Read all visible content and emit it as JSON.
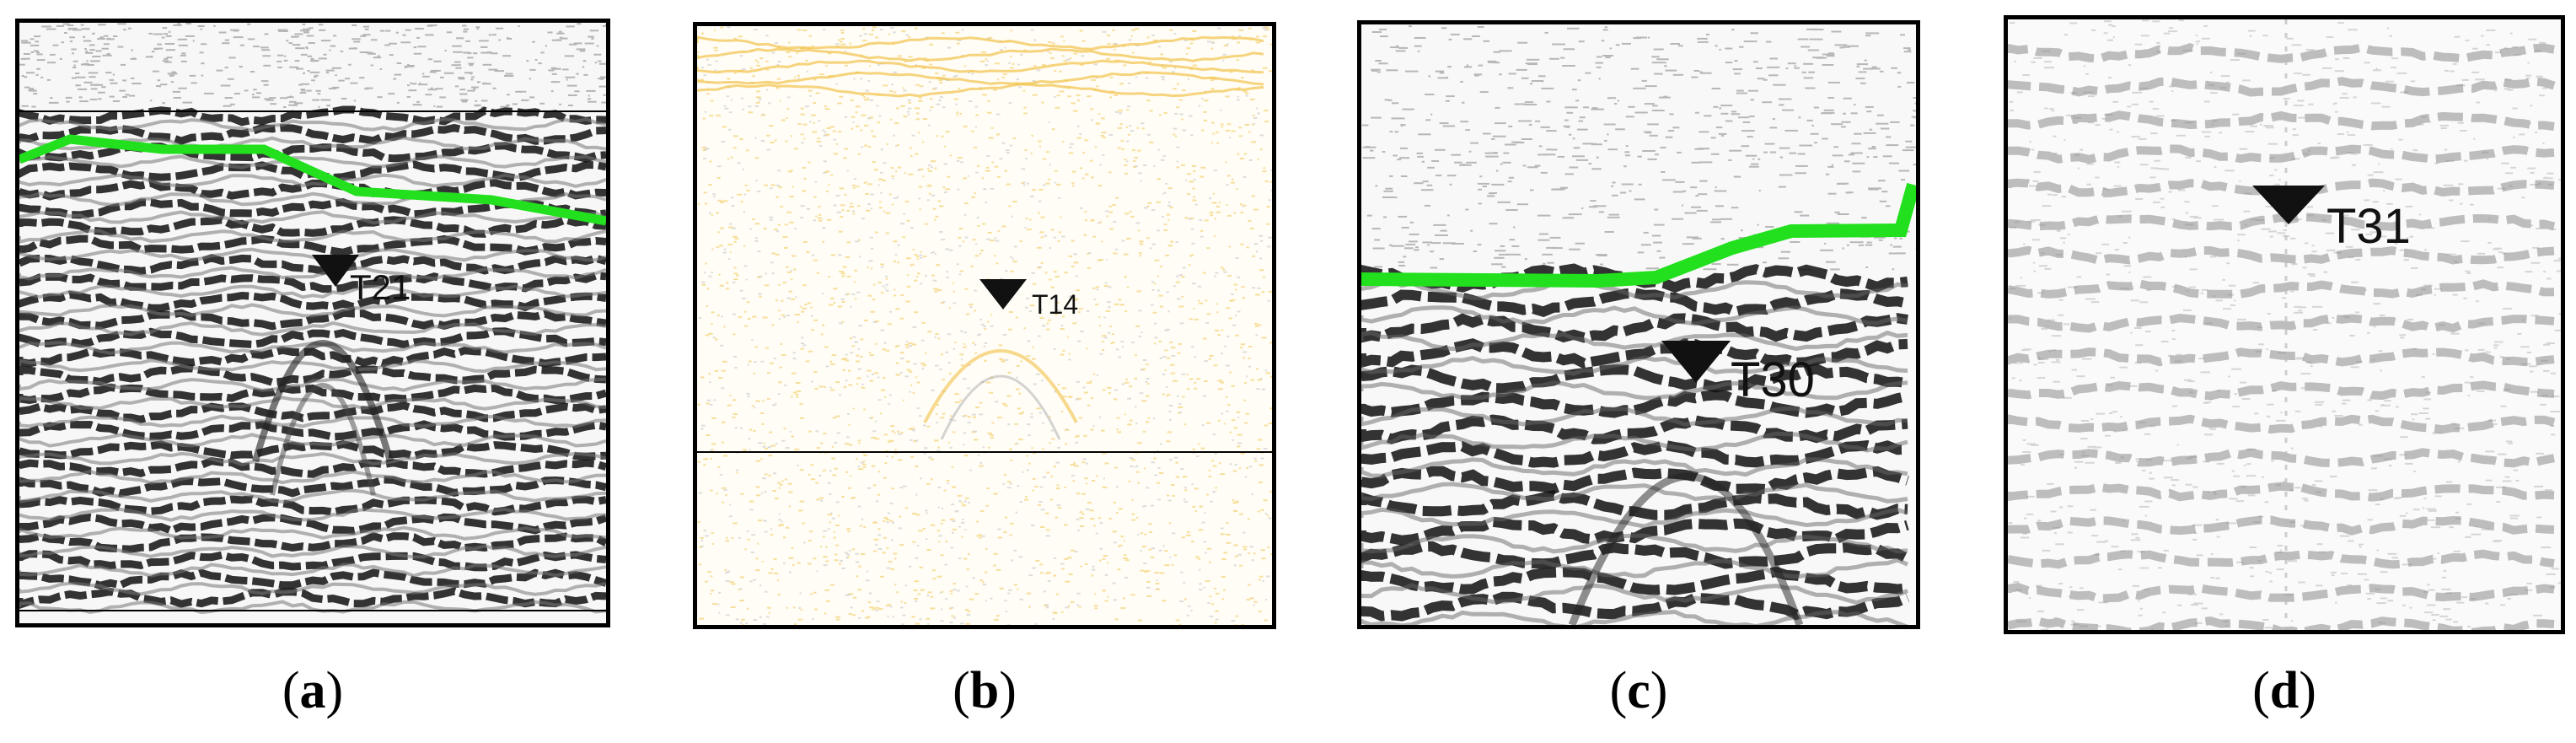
{
  "panels": [
    {
      "caption_open": "(",
      "caption_letter": "a",
      "caption_close": ")",
      "marker_label": "T21"
    },
    {
      "caption_open": "(",
      "caption_letter": "b",
      "caption_close": ")",
      "marker_label": "T14"
    },
    {
      "caption_open": "(",
      "caption_letter": "c",
      "caption_close": ")",
      "marker_label": "T30"
    },
    {
      "caption_open": "(",
      "caption_letter": "d",
      "caption_close": ")",
      "marker_label": "T31"
    }
  ],
  "colors": {
    "horizon_line": "#22e01e",
    "reflector_dark": "#111111",
    "reflector_grey": "#8a8a8a",
    "panel_b_reflector": "#f2c24a",
    "frame": "#000000"
  },
  "icons": [
    "down-triangle-marker-icon"
  ]
}
